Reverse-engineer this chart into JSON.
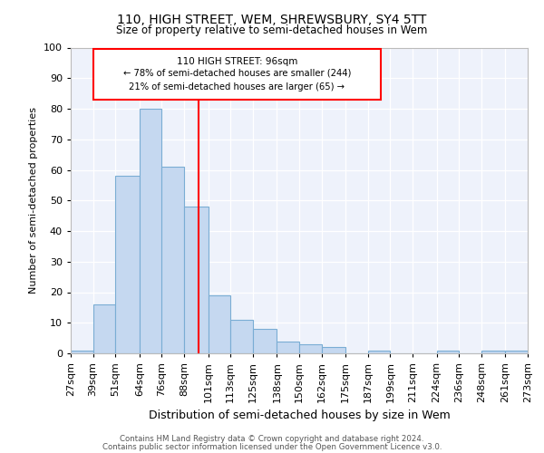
{
  "title1": "110, HIGH STREET, WEM, SHREWSBURY, SY4 5TT",
  "title2": "Size of property relative to semi-detached houses in Wem",
  "xlabel": "Distribution of semi-detached houses by size in Wem",
  "ylabel": "Number of semi-detached properties",
  "bins": [
    "27sqm",
    "39sqm",
    "51sqm",
    "64sqm",
    "76sqm",
    "88sqm",
    "101sqm",
    "113sqm",
    "125sqm",
    "138sqm",
    "150sqm",
    "162sqm",
    "175sqm",
    "187sqm",
    "199sqm",
    "211sqm",
    "224sqm",
    "236sqm",
    "248sqm",
    "261sqm",
    "273sqm"
  ],
  "values": [
    1,
    16,
    58,
    80,
    61,
    48,
    19,
    11,
    8,
    4,
    3,
    2,
    0,
    1,
    0,
    0,
    1,
    0,
    1,
    1
  ],
  "bar_color": "#c5d8f0",
  "bar_edge_color": "#7aadd4",
  "reference_line_x": 96,
  "reference_line_label": "110 HIGH STREET: 96sqm",
  "annotation_line1": "← 78% of semi-detached houses are smaller (244)",
  "annotation_line2": "21% of semi-detached houses are larger (65) →",
  "footer1": "Contains HM Land Registry data © Crown copyright and database right 2024.",
  "footer2": "Contains public sector information licensed under the Open Government Licence v3.0.",
  "ylim": [
    0,
    100
  ],
  "bin_edges": [
    27,
    39,
    51,
    64,
    76,
    88,
    101,
    113,
    125,
    138,
    150,
    162,
    175,
    187,
    199,
    211,
    224,
    236,
    248,
    261,
    273
  ]
}
